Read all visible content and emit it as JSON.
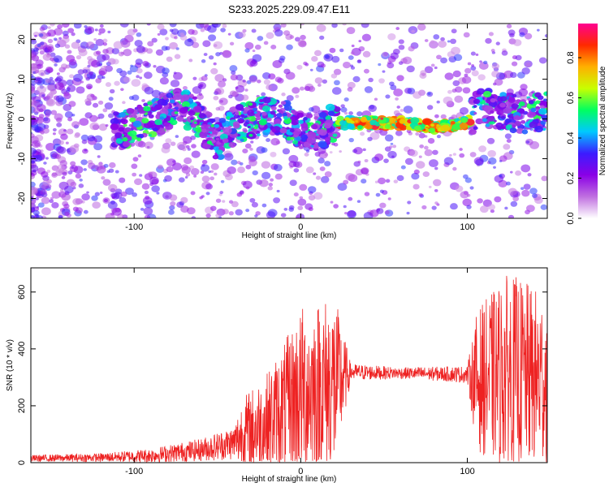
{
  "title": "S233.2025.229.09.47.E11",
  "chart_data": [
    {
      "type": "heatmap",
      "xlabel": "Height of straight line (km)",
      "ylabel": "Frequency (Hz)",
      "xlim": [
        -162,
        148
      ],
      "ylim": [
        -25,
        24
      ],
      "xticks": [
        -100,
        0,
        100
      ],
      "yticks": [
        -20,
        -10,
        0,
        10,
        20
      ],
      "grid": false,
      "colorbar": {
        "label": "Normalized spectral amplitude",
        "range": [
          0,
          0.97
        ],
        "ticks": [
          0.0,
          0.2,
          0.4,
          0.6,
          0.8
        ],
        "colors": [
          "#ffffff",
          "#c070e0",
          "#8a00e6",
          "#3c1cff",
          "#00c8ff",
          "#00ff60",
          "#c8ff00",
          "#ffb000",
          "#ff2a00",
          "#ff0090"
        ]
      },
      "ridge": [
        {
          "x": -108,
          "y": -3
        },
        {
          "x": -95,
          "y": -1
        },
        {
          "x": -85,
          "y": 1
        },
        {
          "x": -75,
          "y": 3
        },
        {
          "x": -65,
          "y": 2
        },
        {
          "x": -58,
          "y": -2
        },
        {
          "x": -50,
          "y": -6
        },
        {
          "x": -40,
          "y": -2
        },
        {
          "x": -30,
          "y": 0
        },
        {
          "x": -20,
          "y": 1
        },
        {
          "x": -10,
          "y": 0
        },
        {
          "x": 0,
          "y": -3
        },
        {
          "x": 10,
          "y": -4
        },
        {
          "x": 18,
          "y": -1
        },
        {
          "x": 25,
          "y": -1
        },
        {
          "x": 40,
          "y": -1
        },
        {
          "x": 60,
          "y": -1
        },
        {
          "x": 80,
          "y": -2
        },
        {
          "x": 100,
          "y": -1
        },
        {
          "x": 108,
          "y": 3
        },
        {
          "x": 120,
          "y": 2
        },
        {
          "x": 135,
          "y": 1
        },
        {
          "x": 148,
          "y": 2
        }
      ]
    },
    {
      "type": "line",
      "xlabel": "Height of straight line (km)",
      "ylabel": "SNR (10 * v/v)",
      "xlim": [
        -162,
        148
      ],
      "ylim": [
        0,
        685
      ],
      "xticks": [
        -100,
        0,
        100
      ],
      "yticks": [
        0,
        200,
        400,
        600
      ],
      "grid": false,
      "color": "#ee2222",
      "envelope": [
        {
          "x": -162,
          "base": 15,
          "amp": 12
        },
        {
          "x": -120,
          "base": 18,
          "amp": 15
        },
        {
          "x": -90,
          "base": 25,
          "amp": 25
        },
        {
          "x": -60,
          "base": 45,
          "amp": 40
        },
        {
          "x": -40,
          "base": 70,
          "amp": 60
        },
        {
          "x": -35,
          "base": 100,
          "amp": 130
        },
        {
          "x": -20,
          "base": 140,
          "amp": 180
        },
        {
          "x": -10,
          "base": 190,
          "amp": 230
        },
        {
          "x": 0,
          "base": 250,
          "amp": 300
        },
        {
          "x": 20,
          "base": 270,
          "amp": 330
        },
        {
          "x": 30,
          "base": 318,
          "amp": 30
        },
        {
          "x": 60,
          "base": 315,
          "amp": 20
        },
        {
          "x": 100,
          "base": 310,
          "amp": 30
        },
        {
          "x": 106,
          "base": 290,
          "amp": 250
        },
        {
          "x": 125,
          "base": 320,
          "amp": 350
        },
        {
          "x": 148,
          "base": 290,
          "amp": 300
        }
      ]
    }
  ]
}
